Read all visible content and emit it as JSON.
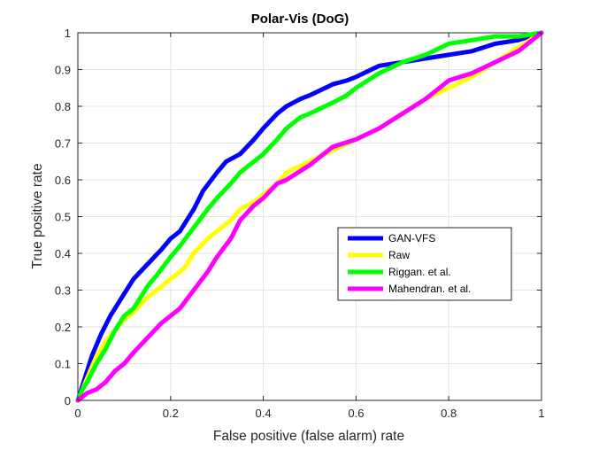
{
  "chart_data": {
    "type": "line",
    "title": "Polar-Vis (DoG)",
    "xlabel": "False positive (false alarm) rate",
    "ylabel": "True positive  rate",
    "xlim": [
      0,
      1
    ],
    "ylim": [
      0,
      1
    ],
    "x_ticks": [
      "0",
      "0.2",
      "0.4",
      "0.6",
      "0.8",
      "1"
    ],
    "y_ticks": [
      "0",
      "0.1",
      "0.2",
      "0.3",
      "0.4",
      "0.5",
      "0.6",
      "0.7",
      "0.8",
      "0.9",
      "1"
    ],
    "grid": true,
    "legend_position": "right",
    "series": [
      {
        "name": "GAN-VFS",
        "color": "#0000ff",
        "points": [
          [
            0,
            0
          ],
          [
            0.01,
            0.04
          ],
          [
            0.02,
            0.08
          ],
          [
            0.03,
            0.12
          ],
          [
            0.05,
            0.18
          ],
          [
            0.07,
            0.23
          ],
          [
            0.1,
            0.29
          ],
          [
            0.12,
            0.33
          ],
          [
            0.15,
            0.37
          ],
          [
            0.18,
            0.41
          ],
          [
            0.2,
            0.44
          ],
          [
            0.22,
            0.46
          ],
          [
            0.25,
            0.52
          ],
          [
            0.27,
            0.57
          ],
          [
            0.3,
            0.62
          ],
          [
            0.32,
            0.65
          ],
          [
            0.35,
            0.67
          ],
          [
            0.38,
            0.71
          ],
          [
            0.4,
            0.74
          ],
          [
            0.43,
            0.78
          ],
          [
            0.45,
            0.8
          ],
          [
            0.48,
            0.82
          ],
          [
            0.5,
            0.83
          ],
          [
            0.55,
            0.86
          ],
          [
            0.58,
            0.87
          ],
          [
            0.6,
            0.88
          ],
          [
            0.65,
            0.91
          ],
          [
            0.7,
            0.92
          ],
          [
            0.75,
            0.93
          ],
          [
            0.8,
            0.94
          ],
          [
            0.85,
            0.95
          ],
          [
            0.9,
            0.97
          ],
          [
            0.95,
            0.98
          ],
          [
            1,
            1
          ]
        ]
      },
      {
        "name": "Raw",
        "color": "#ffff00",
        "points": [
          [
            0,
            0
          ],
          [
            0.01,
            0.03
          ],
          [
            0.02,
            0.06
          ],
          [
            0.04,
            0.12
          ],
          [
            0.06,
            0.16
          ],
          [
            0.08,
            0.19
          ],
          [
            0.1,
            0.22
          ],
          [
            0.12,
            0.24
          ],
          [
            0.15,
            0.28
          ],
          [
            0.18,
            0.31
          ],
          [
            0.2,
            0.33
          ],
          [
            0.23,
            0.36
          ],
          [
            0.25,
            0.4
          ],
          [
            0.28,
            0.44
          ],
          [
            0.3,
            0.46
          ],
          [
            0.33,
            0.49
          ],
          [
            0.35,
            0.52
          ],
          [
            0.38,
            0.54
          ],
          [
            0.4,
            0.56
          ],
          [
            0.43,
            0.59
          ],
          [
            0.45,
            0.62
          ],
          [
            0.5,
            0.65
          ],
          [
            0.55,
            0.68
          ],
          [
            0.6,
            0.71
          ],
          [
            0.65,
            0.74
          ],
          [
            0.7,
            0.78
          ],
          [
            0.75,
            0.82
          ],
          [
            0.8,
            0.85
          ],
          [
            0.85,
            0.88
          ],
          [
            0.9,
            0.92
          ],
          [
            0.95,
            0.96
          ],
          [
            1,
            1
          ]
        ]
      },
      {
        "name": "Riggan. et al.",
        "color": "#00ff00",
        "points": [
          [
            0,
            0
          ],
          [
            0.01,
            0.03
          ],
          [
            0.02,
            0.05
          ],
          [
            0.04,
            0.1
          ],
          [
            0.06,
            0.14
          ],
          [
            0.08,
            0.19
          ],
          [
            0.1,
            0.23
          ],
          [
            0.12,
            0.25
          ],
          [
            0.15,
            0.31
          ],
          [
            0.17,
            0.34
          ],
          [
            0.2,
            0.39
          ],
          [
            0.22,
            0.42
          ],
          [
            0.25,
            0.47
          ],
          [
            0.28,
            0.52
          ],
          [
            0.3,
            0.55
          ],
          [
            0.33,
            0.59
          ],
          [
            0.35,
            0.62
          ],
          [
            0.38,
            0.65
          ],
          [
            0.4,
            0.67
          ],
          [
            0.43,
            0.71
          ],
          [
            0.45,
            0.74
          ],
          [
            0.48,
            0.77
          ],
          [
            0.5,
            0.78
          ],
          [
            0.55,
            0.81
          ],
          [
            0.58,
            0.83
          ],
          [
            0.6,
            0.85
          ],
          [
            0.65,
            0.89
          ],
          [
            0.7,
            0.92
          ],
          [
            0.75,
            0.94
          ],
          [
            0.8,
            0.97
          ],
          [
            0.85,
            0.98
          ],
          [
            0.9,
            0.99
          ],
          [
            0.95,
            0.99
          ],
          [
            1,
            1
          ]
        ]
      },
      {
        "name": "Mahendran. et al.",
        "color": "#ff00ff",
        "points": [
          [
            0,
            0
          ],
          [
            0.01,
            0.01
          ],
          [
            0.02,
            0.02
          ],
          [
            0.04,
            0.03
          ],
          [
            0.06,
            0.05
          ],
          [
            0.08,
            0.08
          ],
          [
            0.1,
            0.1
          ],
          [
            0.12,
            0.13
          ],
          [
            0.15,
            0.17
          ],
          [
            0.18,
            0.21
          ],
          [
            0.2,
            0.23
          ],
          [
            0.22,
            0.25
          ],
          [
            0.25,
            0.3
          ],
          [
            0.28,
            0.35
          ],
          [
            0.3,
            0.39
          ],
          [
            0.33,
            0.44
          ],
          [
            0.35,
            0.49
          ],
          [
            0.38,
            0.53
          ],
          [
            0.4,
            0.55
          ],
          [
            0.43,
            0.59
          ],
          [
            0.45,
            0.6
          ],
          [
            0.5,
            0.64
          ],
          [
            0.55,
            0.69
          ],
          [
            0.6,
            0.71
          ],
          [
            0.65,
            0.74
          ],
          [
            0.7,
            0.78
          ],
          [
            0.75,
            0.82
          ],
          [
            0.8,
            0.87
          ],
          [
            0.85,
            0.89
          ],
          [
            0.9,
            0.92
          ],
          [
            0.95,
            0.95
          ],
          [
            1,
            1
          ]
        ]
      }
    ]
  }
}
